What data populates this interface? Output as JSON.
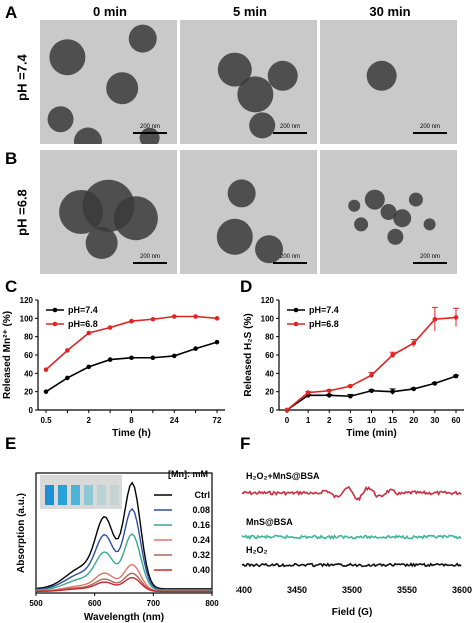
{
  "panel_labels": {
    "A": "A",
    "B": "B",
    "C": "C",
    "D": "D",
    "E": "E",
    "F": "F"
  },
  "tem": {
    "columns": [
      "0 min",
      "5 min",
      "30 min"
    ],
    "rows": [
      "pH =7.4",
      "pH =6.8"
    ],
    "scale_bar": "200 nm"
  },
  "chart_data": [
    {
      "id": "C",
      "type": "line",
      "x": [
        "0.5",
        "1",
        "2",
        "4",
        "8",
        "12",
        "24",
        "48",
        "72"
      ],
      "x_ticks": [
        "0.5",
        "2",
        "8",
        "24",
        "72"
      ],
      "series": [
        {
          "name": "pH=7.4",
          "color": "#000000",
          "values": [
            20,
            35,
            47,
            55,
            57,
            57,
            59,
            67,
            74
          ]
        },
        {
          "name": "pH=6.8",
          "color": "#e02424",
          "values": [
            44,
            65,
            84,
            90,
            97,
            99,
            102,
            102,
            100
          ]
        }
      ],
      "xlabel": "Time (h)",
      "ylabel": "Released Mn²⁺ (%)",
      "ylim": [
        0,
        120
      ],
      "y_ticks": [
        "0",
        "20",
        "40",
        "60",
        "80",
        "100",
        "120"
      ],
      "legend": "top-left"
    },
    {
      "id": "D",
      "type": "line",
      "x": [
        "0",
        "1",
        "2",
        "5",
        "10",
        "15",
        "20",
        "30",
        "60"
      ],
      "series": [
        {
          "name": "pH=7.4",
          "color": "#000000",
          "values": [
            0,
            16,
            16,
            15,
            21,
            20,
            23,
            29,
            37
          ],
          "errors": [
            0,
            1,
            1,
            2,
            1,
            3,
            1,
            1,
            1
          ]
        },
        {
          "name": "pH=6.8",
          "color": "#e02424",
          "values": [
            0,
            19,
            21,
            26,
            38,
            60,
            73,
            99,
            101
          ],
          "errors": [
            0,
            1,
            1,
            1,
            3,
            3,
            4,
            13,
            10
          ]
        }
      ],
      "xlabel": "Time (min)",
      "ylabel": "Released H₂S (%)",
      "ylim": [
        0,
        120
      ],
      "y_ticks": [
        "0",
        "20",
        "40",
        "60",
        "80",
        "100",
        "120"
      ],
      "legend": "top-left"
    },
    {
      "id": "E",
      "type": "line",
      "xlabel": "Wavelength (nm)",
      "ylabel": "Absorption (a.u.)",
      "xlim": [
        500,
        800
      ],
      "ylim": [
        0,
        2.0
      ],
      "x_ticks": [
        "500",
        "600",
        "700",
        "800"
      ],
      "legend_title": "[Mn]: mM",
      "series": [
        {
          "name": "Ctrl",
          "color": "#000000",
          "scale": 1.0
        },
        {
          "name": "0.08",
          "color": "#2e4fa2",
          "scale": 0.76
        },
        {
          "name": "0.16",
          "color": "#3aa98c",
          "scale": 0.53
        },
        {
          "name": "0.24",
          "color": "#e0736d",
          "scale": 0.25
        },
        {
          "name": "0.32",
          "color": "#a8695f",
          "scale": 0.17
        },
        {
          "name": "0.40",
          "color": "#c9272b",
          "scale": 0.13
        }
      ]
    },
    {
      "id": "F",
      "type": "line",
      "xlabel": "Field (G)",
      "xlim": [
        3400,
        3600
      ],
      "x_ticks": [
        "3400",
        "3450",
        "3500",
        "3550",
        "3600"
      ],
      "series": [
        {
          "name": "H₂O₂+MnS@BSA",
          "color": "#c83040",
          "noise": 0.35
        },
        {
          "name": "MnS@BSA",
          "color": "#3fb59a",
          "noise": 0.5
        },
        {
          "name": "H₂O₂",
          "color": "#111111",
          "noise": 0.6
        }
      ]
    }
  ]
}
